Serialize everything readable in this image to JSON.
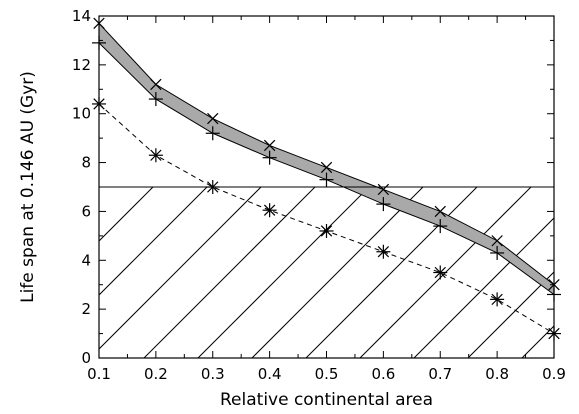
{
  "chart_data": {
    "type": "line",
    "title": "",
    "xlabel": "Relative continental area",
    "ylabel": "Life span at 0.146 AU (Gyr)",
    "xlim": [
      0.1,
      0.9
    ],
    "ylim": [
      0,
      14
    ],
    "xticks": [
      0.1,
      0.2,
      0.3,
      0.4,
      0.5,
      0.6,
      0.7,
      0.8,
      0.9
    ],
    "xtick_labels": [
      "0.1",
      "0.2",
      "0.3",
      "0.4",
      "0.5",
      "0.6",
      "0.7",
      "0.8",
      "0.9"
    ],
    "yticks": [
      0,
      2,
      4,
      6,
      8,
      10,
      12,
      14
    ],
    "ytick_labels": [
      "0",
      "2",
      "4",
      "6",
      "8",
      "10",
      "12",
      "14"
    ],
    "grid": false,
    "legend": false,
    "x": [
      0.1,
      0.2,
      0.3,
      0.4,
      0.5,
      0.6,
      0.7,
      0.8,
      0.9
    ],
    "band": {
      "upper": [
        13.7,
        11.2,
        9.8,
        8.7,
        7.8,
        6.9,
        6.0,
        4.8,
        3.0
      ],
      "lower": [
        12.9,
        10.6,
        9.2,
        8.2,
        7.3,
        6.3,
        5.4,
        4.3,
        2.6
      ],
      "fill_color": "#a9a9a9"
    },
    "series": [
      {
        "values": [
          13.7,
          11.2,
          9.8,
          8.7,
          7.8,
          6.9,
          6.0,
          4.8,
          3.0
        ],
        "marker": "x",
        "line": "solid"
      },
      {
        "values": [
          12.9,
          10.6,
          9.2,
          8.2,
          7.3,
          6.3,
          5.4,
          4.3,
          2.6
        ],
        "marker": "+",
        "line": "solid"
      },
      {
        "values": [
          10.4,
          8.3,
          7.0,
          6.05,
          5.2,
          4.35,
          3.5,
          2.4,
          1.0
        ],
        "marker": "asterisk",
        "line": "dashed"
      }
    ],
    "threshold": {
      "y": 7.0,
      "line": "solid",
      "hatch_below": true
    }
  }
}
